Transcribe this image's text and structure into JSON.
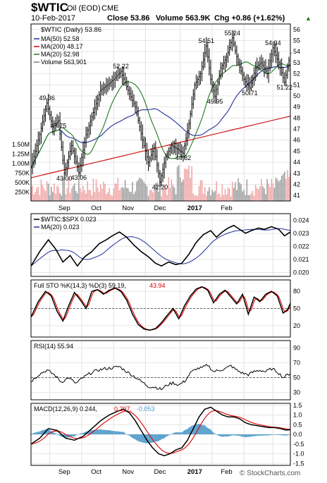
{
  "header": {
    "ticker": "$WTIC",
    "desc": "Oil (EOD)",
    "exchange": "CME",
    "date": "10-Feb-2017",
    "close": "Close 53.86",
    "volume": "Volume 563.9K",
    "chg": "Chg +0.86 (+1.62%)",
    "chg_arrow": "▲",
    "watermark": "© StockCharts.com"
  },
  "colors": {
    "price": "#000000",
    "ma50": "#1f2f99",
    "ma200": "#cc0000",
    "ma20": "#1f7a1f",
    "vol_up": "#f0a8a8",
    "vol_down": "#a0a0a0",
    "sto_d": "#dd0000",
    "macd_hist": "#4a98c8"
  },
  "chart_data": [
    {
      "type": "line",
      "panel": "price",
      "title": "$WTIC (Daily) 53.86",
      "legend": [
        {
          "name": "MA(50) 52.58",
          "color": "#1f2f99"
        },
        {
          "name": "MA(200) 48.17",
          "color": "#cc0000"
        },
        {
          "name": "MA(20) 52.98",
          "color": "#1f7a1f"
        },
        {
          "name": "Volume 563,901",
          "color": "#888888"
        }
      ],
      "x_ticks": [
        "Sep",
        "Oct",
        "Nov",
        "Dec",
        "2017",
        "Feb"
      ],
      "y_ticks": [
        41,
        42,
        43,
        44,
        45,
        46,
        47,
        48,
        49,
        50,
        51,
        52,
        53,
        54,
        55,
        56
      ],
      "ylim": [
        40.5,
        56.5
      ],
      "vol_ticks": [
        "1.50M",
        "1.25M",
        "1.00M",
        "750K",
        "500K",
        "250K"
      ],
      "price_anchors": [
        [
          0,
          43.5
        ],
        [
          6,
          46.5
        ],
        [
          11,
          49.36
        ],
        [
          15,
          47.2
        ],
        [
          19,
          47.75
        ],
        [
          23,
          43.0
        ],
        [
          28,
          45.5
        ],
        [
          33,
          43.06
        ],
        [
          38,
          46.5
        ],
        [
          43,
          48.5
        ],
        [
          48,
          50.5
        ],
        [
          53,
          51.0
        ],
        [
          57,
          51.5
        ],
        [
          62,
          52.22
        ],
        [
          67,
          50.5
        ],
        [
          72,
          49.0
        ],
        [
          77,
          46.0
        ],
        [
          81,
          44.0
        ],
        [
          85,
          45.3
        ],
        [
          89,
          42.2
        ],
        [
          93,
          44.5
        ],
        [
          97,
          45.5
        ],
        [
          101,
          45.2
        ],
        [
          105,
          44.82
        ],
        [
          109,
          47.5
        ],
        [
          113,
          51.0
        ],
        [
          117,
          52.0
        ],
        [
          121,
          54.51
        ],
        [
          124,
          51.5
        ],
        [
          127,
          49.95
        ],
        [
          131,
          52.5
        ],
        [
          135,
          53.5
        ],
        [
          139,
          55.24
        ],
        [
          143,
          53.0
        ],
        [
          147,
          51.5
        ],
        [
          151,
          50.71
        ],
        [
          155,
          52.5
        ],
        [
          159,
          53.0
        ],
        [
          163,
          52.0
        ],
        [
          167,
          54.34
        ],
        [
          171,
          53.0
        ],
        [
          175,
          51.22
        ],
        [
          179,
          53.86
        ]
      ],
      "annotations": [
        {
          "text": "49.36",
          "x": 11,
          "y": 49.36
        },
        {
          "text": "47.75",
          "x": 19,
          "y": 47.75
        },
        {
          "text": "43.00",
          "x": 23,
          "y": 43.0
        },
        {
          "text": "43.06",
          "x": 33,
          "y": 43.06
        },
        {
          "text": "52.22",
          "x": 62,
          "y": 52.22
        },
        {
          "text": "42.20",
          "x": 89,
          "y": 42.2
        },
        {
          "text": "44.82",
          "x": 105,
          "y": 44.82
        },
        {
          "text": "54.51",
          "x": 121,
          "y": 54.51
        },
        {
          "text": "49.95",
          "x": 127,
          "y": 49.95
        },
        {
          "text": "55.24",
          "x": 139,
          "y": 55.24
        },
        {
          "text": "50.71",
          "x": 151,
          "y": 50.71
        },
        {
          "text": "54.34",
          "x": 167,
          "y": 54.34
        },
        {
          "text": "51.22",
          "x": 175,
          "y": 51.22
        }
      ]
    },
    {
      "type": "line",
      "panel": "ratio",
      "legend": [
        {
          "name": "$WTIC:$SPX 0.023",
          "color": "#000000"
        },
        {
          "name": "MA(20) 0.023",
          "color": "#1f2f99"
        }
      ],
      "y_ticks": [
        0.02,
        0.021,
        0.022,
        0.023,
        0.024
      ],
      "ylim": [
        0.0197,
        0.0245
      ],
      "anchors": [
        [
          0,
          0.0205
        ],
        [
          6,
          0.0216
        ],
        [
          12,
          0.0225
        ],
        [
          17,
          0.0218
        ],
        [
          22,
          0.0208
        ],
        [
          27,
          0.0213
        ],
        [
          32,
          0.0205
        ],
        [
          37,
          0.0212
        ],
        [
          42,
          0.0216
        ],
        [
          47,
          0.0222
        ],
        [
          52,
          0.0225
        ],
        [
          56,
          0.0228
        ],
        [
          61,
          0.0231
        ],
        [
          66,
          0.0227
        ],
        [
          71,
          0.0221
        ],
        [
          76,
          0.0216
        ],
        [
          81,
          0.0212
        ],
        [
          86,
          0.0207
        ],
        [
          90,
          0.0205
        ],
        [
          95,
          0.0208
        ],
        [
          100,
          0.0206
        ],
        [
          104,
          0.0207
        ],
        [
          109,
          0.0214
        ],
        [
          114,
          0.0223
        ],
        [
          119,
          0.0229
        ],
        [
          124,
          0.0232
        ],
        [
          128,
          0.0227
        ],
        [
          132,
          0.0231
        ],
        [
          136,
          0.0234
        ],
        [
          140,
          0.0236
        ],
        [
          144,
          0.0233
        ],
        [
          148,
          0.023
        ],
        [
          152,
          0.0232
        ],
        [
          157,
          0.0234
        ],
        [
          161,
          0.0233
        ],
        [
          166,
          0.0235
        ],
        [
          171,
          0.0233
        ],
        [
          175,
          0.0228
        ],
        [
          179,
          0.0231
        ]
      ]
    },
    {
      "type": "line",
      "panel": "stochastic",
      "legend": [
        {
          "name": "Full STO %K(14,3) %D(3) 59.19,",
          "color": "#000000"
        },
        {
          "name": "43.94",
          "color": "#dd0000"
        }
      ],
      "y_ticks": [
        20,
        50,
        80
      ],
      "ylim": [
        0,
        100
      ],
      "anchors": [
        [
          0,
          35
        ],
        [
          5,
          62
        ],
        [
          10,
          80
        ],
        [
          14,
          72
        ],
        [
          18,
          45
        ],
        [
          22,
          28
        ],
        [
          26,
          55
        ],
        [
          30,
          78
        ],
        [
          34,
          65
        ],
        [
          38,
          50
        ],
        [
          42,
          80
        ],
        [
          46,
          83
        ],
        [
          50,
          75
        ],
        [
          54,
          82
        ],
        [
          58,
          86
        ],
        [
          62,
          80
        ],
        [
          66,
          65
        ],
        [
          70,
          40
        ],
        [
          74,
          22
        ],
        [
          78,
          14
        ],
        [
          82,
          12
        ],
        [
          86,
          15
        ],
        [
          90,
          25
        ],
        [
          94,
          38
        ],
        [
          98,
          50
        ],
        [
          102,
          32
        ],
        [
          106,
          55
        ],
        [
          110,
          72
        ],
        [
          114,
          84
        ],
        [
          118,
          88
        ],
        [
          122,
          82
        ],
        [
          126,
          60
        ],
        [
          130,
          75
        ],
        [
          134,
          82
        ],
        [
          138,
          70
        ],
        [
          142,
          58
        ],
        [
          146,
          75
        ],
        [
          150,
          40
        ],
        [
          154,
          70
        ],
        [
          158,
          62
        ],
        [
          162,
          75
        ],
        [
          166,
          80
        ],
        [
          170,
          72
        ],
        [
          174,
          42
        ],
        [
          177,
          48
        ],
        [
          179,
          59
        ]
      ]
    },
    {
      "type": "line",
      "panel": "rsi",
      "legend": [
        {
          "name": "RSI(14) 55.94",
          "color": "#000000"
        }
      ],
      "y_ticks": [
        30,
        50,
        70,
        90
      ],
      "ylim": [
        20,
        100
      ],
      "anchors": [
        [
          0,
          45
        ],
        [
          6,
          55
        ],
        [
          11,
          60
        ],
        [
          16,
          54
        ],
        [
          21,
          44
        ],
        [
          26,
          50
        ],
        [
          31,
          42
        ],
        [
          36,
          50
        ],
        [
          41,
          56
        ],
        [
          46,
          60
        ],
        [
          51,
          62
        ],
        [
          56,
          63
        ],
        [
          61,
          65
        ],
        [
          66,
          58
        ],
        [
          71,
          52
        ],
        [
          76,
          45
        ],
        [
          81,
          38
        ],
        [
          86,
          37
        ],
        [
          90,
          34
        ],
        [
          94,
          40
        ],
        [
          98,
          43
        ],
        [
          102,
          40
        ],
        [
          106,
          45
        ],
        [
          110,
          56
        ],
        [
          114,
          62
        ],
        [
          118,
          63
        ],
        [
          122,
          67
        ],
        [
          126,
          58
        ],
        [
          130,
          60
        ],
        [
          134,
          62
        ],
        [
          138,
          66
        ],
        [
          142,
          60
        ],
        [
          146,
          56
        ],
        [
          150,
          54
        ],
        [
          154,
          58
        ],
        [
          158,
          60
        ],
        [
          162,
          58
        ],
        [
          166,
          62
        ],
        [
          170,
          58
        ],
        [
          174,
          50
        ],
        [
          179,
          56
        ]
      ]
    },
    {
      "type": "line",
      "panel": "macd",
      "legend": [
        {
          "name": "MACD(12,26,9) 0.244,",
          "color": "#000000"
        },
        {
          "name": "0.297,",
          "color": "#dd0000"
        },
        {
          "name": "-0.053",
          "color": "#4a98c8"
        }
      ],
      "y_ticks": [
        -1.5,
        -1.0,
        -0.5,
        0.0,
        0.5,
        1.0,
        1.5
      ],
      "ylim": [
        -1.6,
        1.6
      ],
      "anchors": [
        [
          0,
          -0.5
        ],
        [
          6,
          -0.2
        ],
        [
          12,
          0.3
        ],
        [
          18,
          0.2
        ],
        [
          24,
          -0.2
        ],
        [
          30,
          -0.3
        ],
        [
          36,
          -0.1
        ],
        [
          42,
          0.3
        ],
        [
          48,
          0.7
        ],
        [
          54,
          1.0
        ],
        [
          60,
          1.2
        ],
        [
          64,
          1.3
        ],
        [
          68,
          1.1
        ],
        [
          72,
          0.7
        ],
        [
          76,
          0.2
        ],
        [
          80,
          -0.3
        ],
        [
          84,
          -0.7
        ],
        [
          88,
          -1.0
        ],
        [
          92,
          -1.1
        ],
        [
          96,
          -1.0
        ],
        [
          100,
          -0.8
        ],
        [
          104,
          -0.7
        ],
        [
          108,
          -0.3
        ],
        [
          112,
          0.3
        ],
        [
          116,
          0.9
        ],
        [
          120,
          1.3
        ],
        [
          124,
          1.4
        ],
        [
          128,
          1.2
        ],
        [
          132,
          1.0
        ],
        [
          136,
          0.9
        ],
        [
          140,
          0.9
        ],
        [
          144,
          0.8
        ],
        [
          148,
          0.6
        ],
        [
          152,
          0.5
        ],
        [
          156,
          0.45
        ],
        [
          160,
          0.4
        ],
        [
          164,
          0.35
        ],
        [
          168,
          0.35
        ],
        [
          172,
          0.3
        ],
        [
          176,
          0.22
        ],
        [
          179,
          0.24
        ]
      ]
    }
  ]
}
